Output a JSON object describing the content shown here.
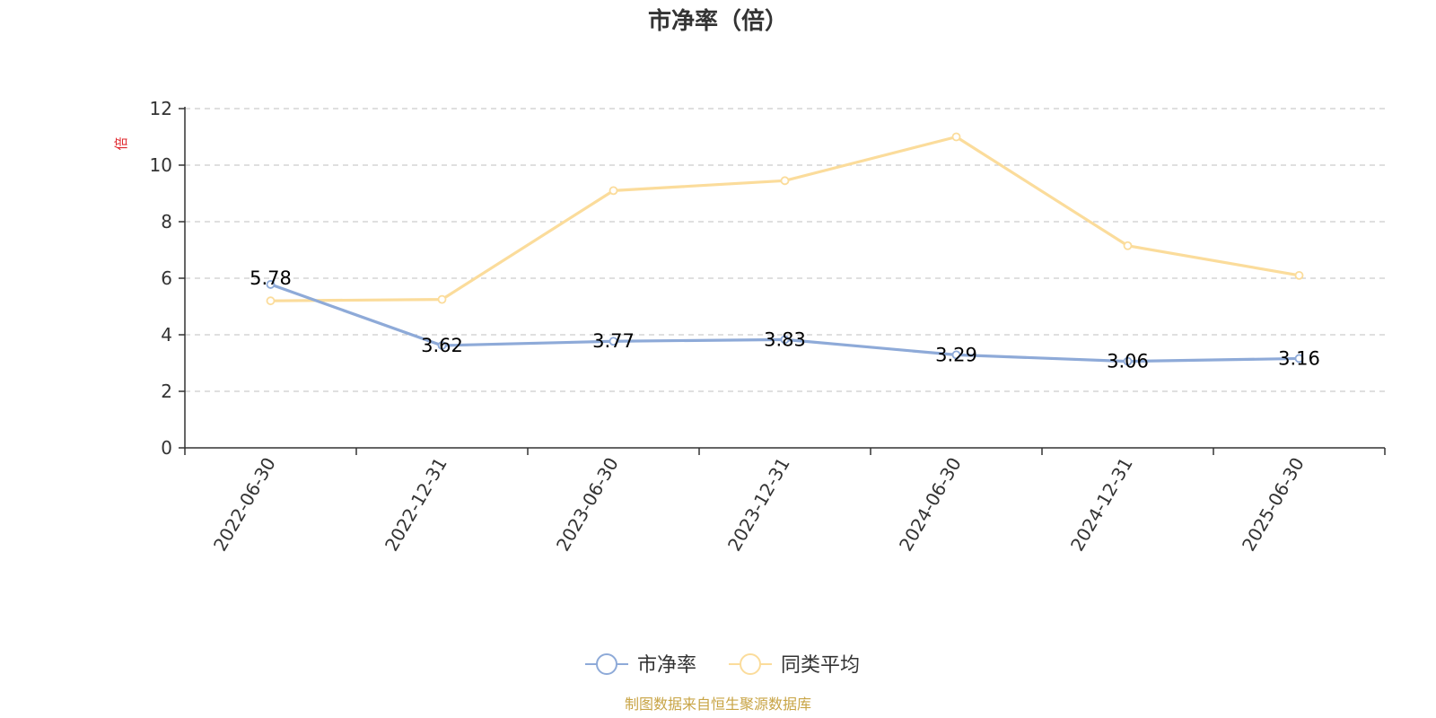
{
  "chart_data": {
    "type": "line",
    "title": "市净率（倍）",
    "ylabel": "倍",
    "ylim": [
      0,
      12
    ],
    "yticks": [
      0,
      2,
      4,
      6,
      8,
      10,
      12
    ],
    "grid": true,
    "legend_position": "bottom",
    "categories": [
      "2022-06-30",
      "2022-12-31",
      "2023-06-30",
      "2023-12-31",
      "2024-06-30",
      "2024-12-31",
      "2025-06-30"
    ],
    "series": [
      {
        "name": "市净率",
        "color": "#8eaad8",
        "values": [
          5.78,
          3.62,
          3.77,
          3.83,
          3.29,
          3.06,
          3.16
        ],
        "data_labels": [
          "5.78",
          "3.62",
          "3.77",
          "3.83",
          "3.29",
          "3.06",
          "3.16"
        ]
      },
      {
        "name": "同类平均",
        "color": "#fbdc9b",
        "values": [
          5.2,
          5.25,
          9.1,
          9.45,
          11.0,
          7.15,
          6.1
        ]
      }
    ]
  },
  "footer": {
    "source": "制图数据来自恒生聚源数据库"
  }
}
